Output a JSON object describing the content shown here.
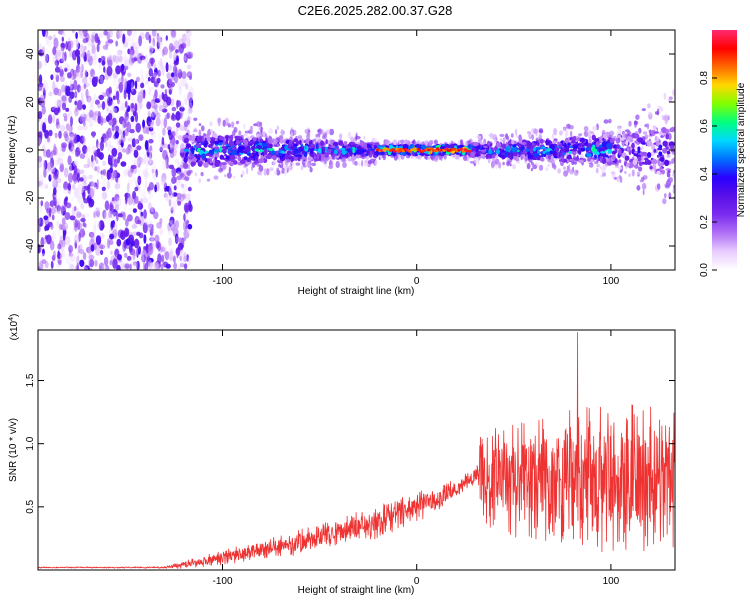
{
  "title": "C2E6.2025.282.00.37.G28",
  "chart_data": [
    {
      "type": "heatmap",
      "id": "spectrogram",
      "xlabel": "Height of straight line (km)",
      "ylabel": "Frequency (Hz)",
      "xlim": [
        -195,
        133
      ],
      "ylim": [
        -50,
        50
      ],
      "xticks": [
        -100,
        0,
        100
      ],
      "xtick_labels": [
        "-100",
        "0",
        "100"
      ],
      "yticks": [
        -40,
        -20,
        0,
        20,
        40
      ],
      "ytick_labels": [
        "-40",
        "-20",
        "0",
        "20",
        "40"
      ],
      "colorbar": {
        "label": "Normalized spectral amplitude",
        "range": [
          0,
          1
        ],
        "ticks": [
          0.0,
          0.2,
          0.4,
          0.6,
          0.8
        ],
        "tick_labels": [
          "0.0",
          "0.2",
          "0.4",
          "0.6",
          "0.8"
        ],
        "colors": [
          "#ffffff",
          "#e8ccff",
          "#b070f5",
          "#7b2cf0",
          "#5a10e8",
          "#2a00ff",
          "#0070ff",
          "#00d8ff",
          "#00ff80",
          "#80ff00",
          "#ffd800",
          "#ff6a00",
          "#ff0000",
          "#ff2a70"
        ]
      },
      "band_center_hz": 0,
      "regions": [
        {
          "x_range": [
            -195,
            -120
          ],
          "description": "broadband noise",
          "y_range": [
            -50,
            50
          ],
          "amplitude": 0.2
        },
        {
          "x_range": [
            -120,
            -20
          ],
          "band_halfwidth_hz": [
            8,
            3
          ],
          "amplitude": 0.35
        },
        {
          "x_range": [
            -20,
            28
          ],
          "band_halfwidth_hz": [
            2,
            2
          ],
          "amplitude": 0.95
        },
        {
          "x_range": [
            28,
            105
          ],
          "band_halfwidth_hz": [
            3,
            7
          ],
          "amplitude": 0.4
        },
        {
          "x_range": [
            105,
            133
          ],
          "band_halfwidth_hz": [
            7,
            14
          ],
          "amplitude": 0.2
        }
      ]
    },
    {
      "type": "line",
      "id": "snr",
      "xlabel": "Height of straight line (km)",
      "ylabel": "SNR (10 * v/v)",
      "multiplier_label": "(x10",
      "multiplier_exponent": "4",
      "xlim": [
        -195,
        133
      ],
      "ylim": [
        0,
        1.9
      ],
      "xticks": [
        -100,
        0,
        100
      ],
      "xtick_labels": [
        "-100",
        "0",
        "100"
      ],
      "yticks": [
        0.5,
        1.0,
        1.5
      ],
      "ytick_labels": [
        "0.5",
        "1.0",
        "1.5"
      ],
      "series": [
        {
          "name": "SNR",
          "color": "#ee3333",
          "envelope_x": [
            -195,
            -130,
            -120,
            -100,
            -80,
            -60,
            -40,
            -20,
            0,
            10,
            20,
            25,
            30,
            33,
            40,
            60,
            80,
            100,
            120,
            133
          ],
          "envelope_mean": [
            0.02,
            0.02,
            0.04,
            0.1,
            0.16,
            0.22,
            0.3,
            0.38,
            0.5,
            0.56,
            0.64,
            0.7,
            0.74,
            0.72,
            0.7,
            0.72,
            0.74,
            0.72,
            0.7,
            0.7
          ],
          "envelope_spread": [
            0.005,
            0.006,
            0.03,
            0.06,
            0.08,
            0.1,
            0.12,
            0.13,
            0.12,
            0.1,
            0.08,
            0.06,
            0.06,
            0.35,
            0.42,
            0.48,
            0.55,
            0.6,
            0.62,
            0.6
          ],
          "peak_values": [
            1.88,
            1.84,
            1.82,
            1.76,
            1.64,
            1.36
          ]
        }
      ]
    }
  ]
}
